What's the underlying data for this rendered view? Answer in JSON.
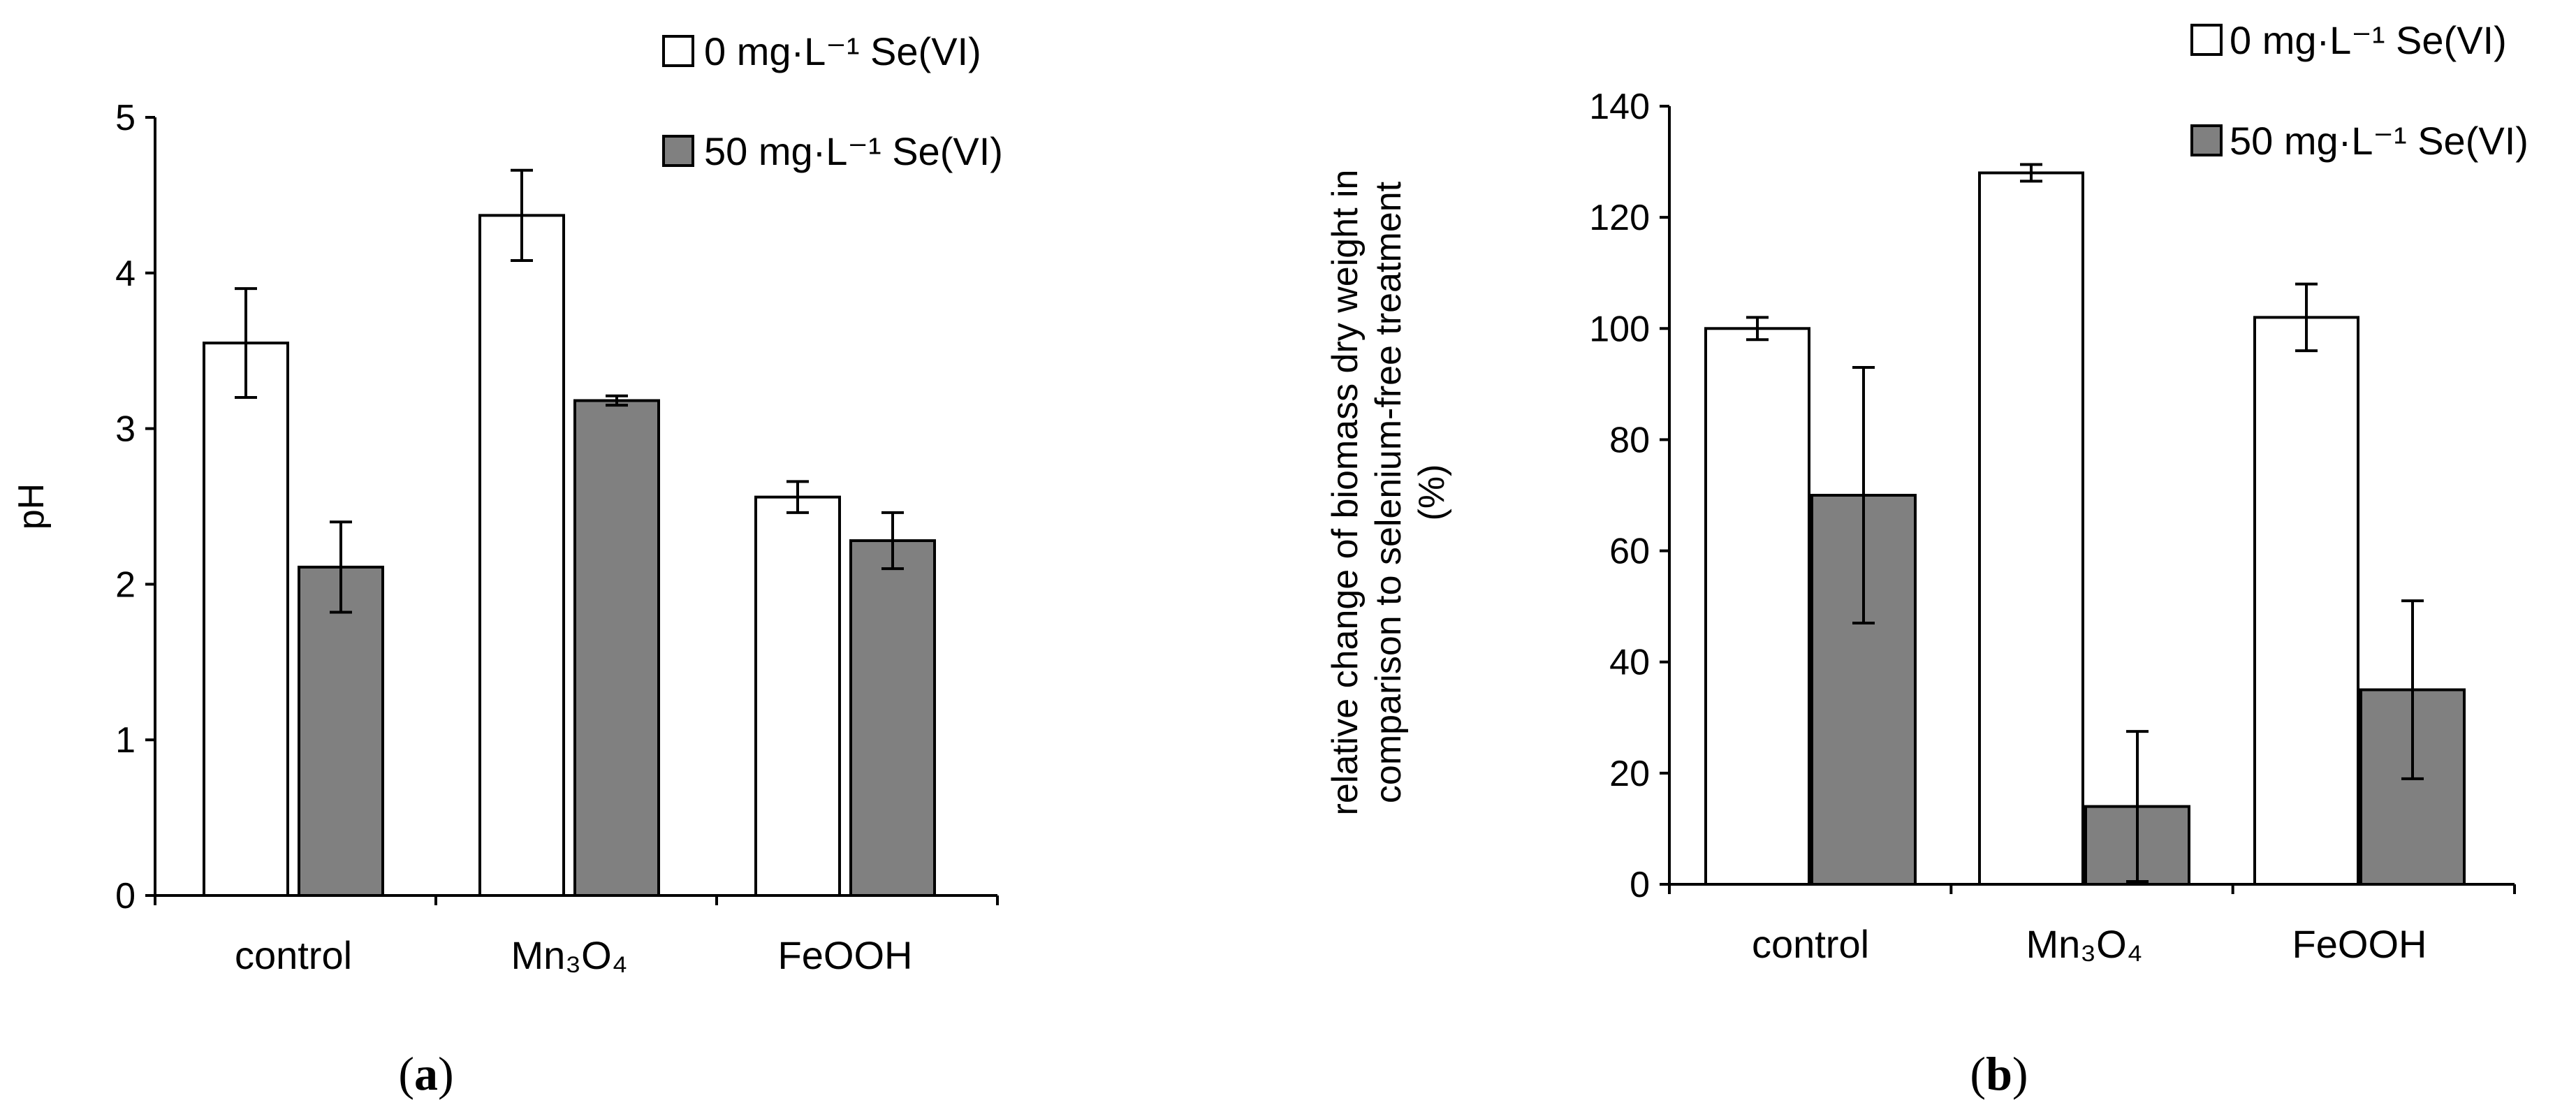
{
  "colors": {
    "open": "#ffffff",
    "filled": "#808080",
    "stroke": "#000000"
  },
  "legend": {
    "series0": "0 mg·L⁻¹ Se(VI)",
    "series1": "50 mg·L⁻¹ Se(VI)"
  },
  "chart_data": [
    {
      "type": "bar",
      "panel": "a",
      "panel_label": "a",
      "categories": [
        "control",
        "Mn₃O₄",
        "FeOOH"
      ],
      "ylabel": "pH",
      "xlabel": "",
      "ylim": [
        0,
        5
      ],
      "yticks": [
        "0",
        "1",
        "2",
        "3",
        "4",
        "5"
      ],
      "grid": false,
      "legend_position": "top-right",
      "series": [
        {
          "name": "0 mg·L⁻¹ Se(VI)",
          "values": [
            3.55,
            4.37,
            2.56
          ],
          "errors": [
            0.35,
            0.29,
            0.1
          ]
        },
        {
          "name": "50 mg·L⁻¹ Se(VI)",
          "values": [
            2.11,
            3.18,
            2.28
          ],
          "errors": [
            0.29,
            0.03,
            0.18
          ]
        }
      ]
    },
    {
      "type": "bar",
      "panel": "b",
      "panel_label": "b",
      "categories": [
        "control",
        "Mn₃O₄",
        "FeOOH"
      ],
      "ylabel_lines": [
        "relative change of biomass dry weight in",
        "comparison to selenium-free treatment",
        "(%)"
      ],
      "xlabel": "",
      "ylim": [
        0,
        140
      ],
      "yticks": [
        "0",
        "20",
        "40",
        "60",
        "80",
        "100",
        "120",
        "140"
      ],
      "grid": false,
      "legend_position": "top-right",
      "series": [
        {
          "name": "0 mg·L⁻¹ Se(VI)",
          "values": [
            100,
            128,
            102
          ],
          "errors": [
            2,
            1.5,
            6
          ]
        },
        {
          "name": "50 mg·L⁻¹ Se(VI)",
          "values": [
            70,
            14,
            35
          ],
          "errors": [
            23,
            13.5,
            16
          ]
        }
      ]
    }
  ]
}
